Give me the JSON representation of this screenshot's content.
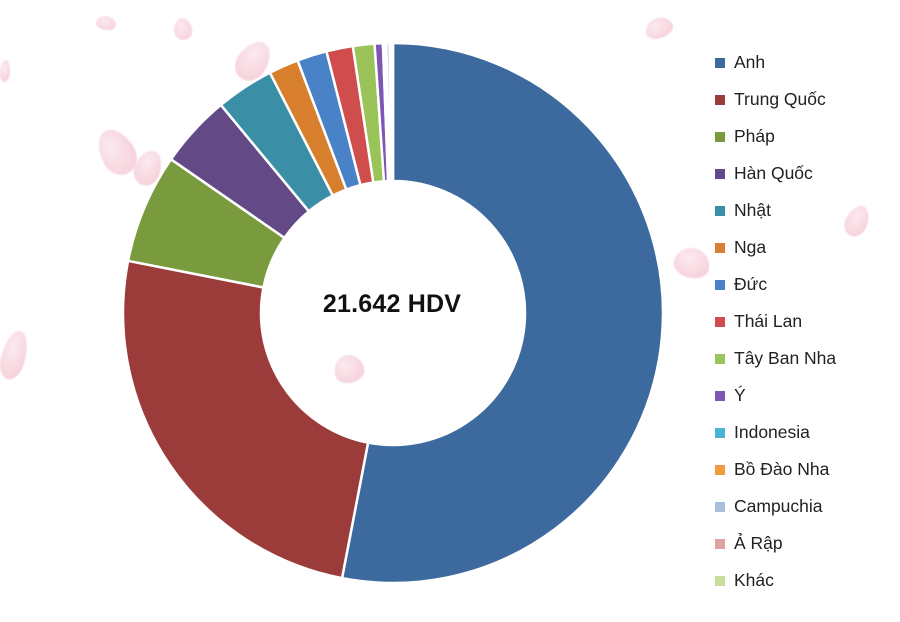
{
  "chart_data": {
    "type": "pie",
    "center_label": "21.642 HDV",
    "categories": [
      "Anh",
      "Trung Quốc",
      "Pháp",
      "Hàn Quốc",
      "Nhật",
      "Nga",
      "Đức",
      "Thái Lan",
      "Tây Ban Nha",
      "Ý",
      "Indonesia",
      "Bồ Đào Nha",
      "Campuchia",
      "Ả Rập",
      "Khác"
    ],
    "values": [
      53.5,
      25.3,
      6.6,
      4.4,
      3.5,
      1.8,
      1.8,
      1.6,
      1.3,
      0.5,
      0.1,
      0.1,
      0.2,
      0.1,
      0.1
    ],
    "colors": [
      "#3d6a9e",
      "#9b3c3a",
      "#7a9a3e",
      "#634a87",
      "#3a8fa6",
      "#d87f2d",
      "#4a82c8",
      "#cf4d4d",
      "#9ac459",
      "#7d57b3",
      "#4ab3d3",
      "#f39b43",
      "#a8bfe0",
      "#e0a3a3",
      "#c5df98"
    ],
    "donut": true,
    "legend_position": "right"
  }
}
